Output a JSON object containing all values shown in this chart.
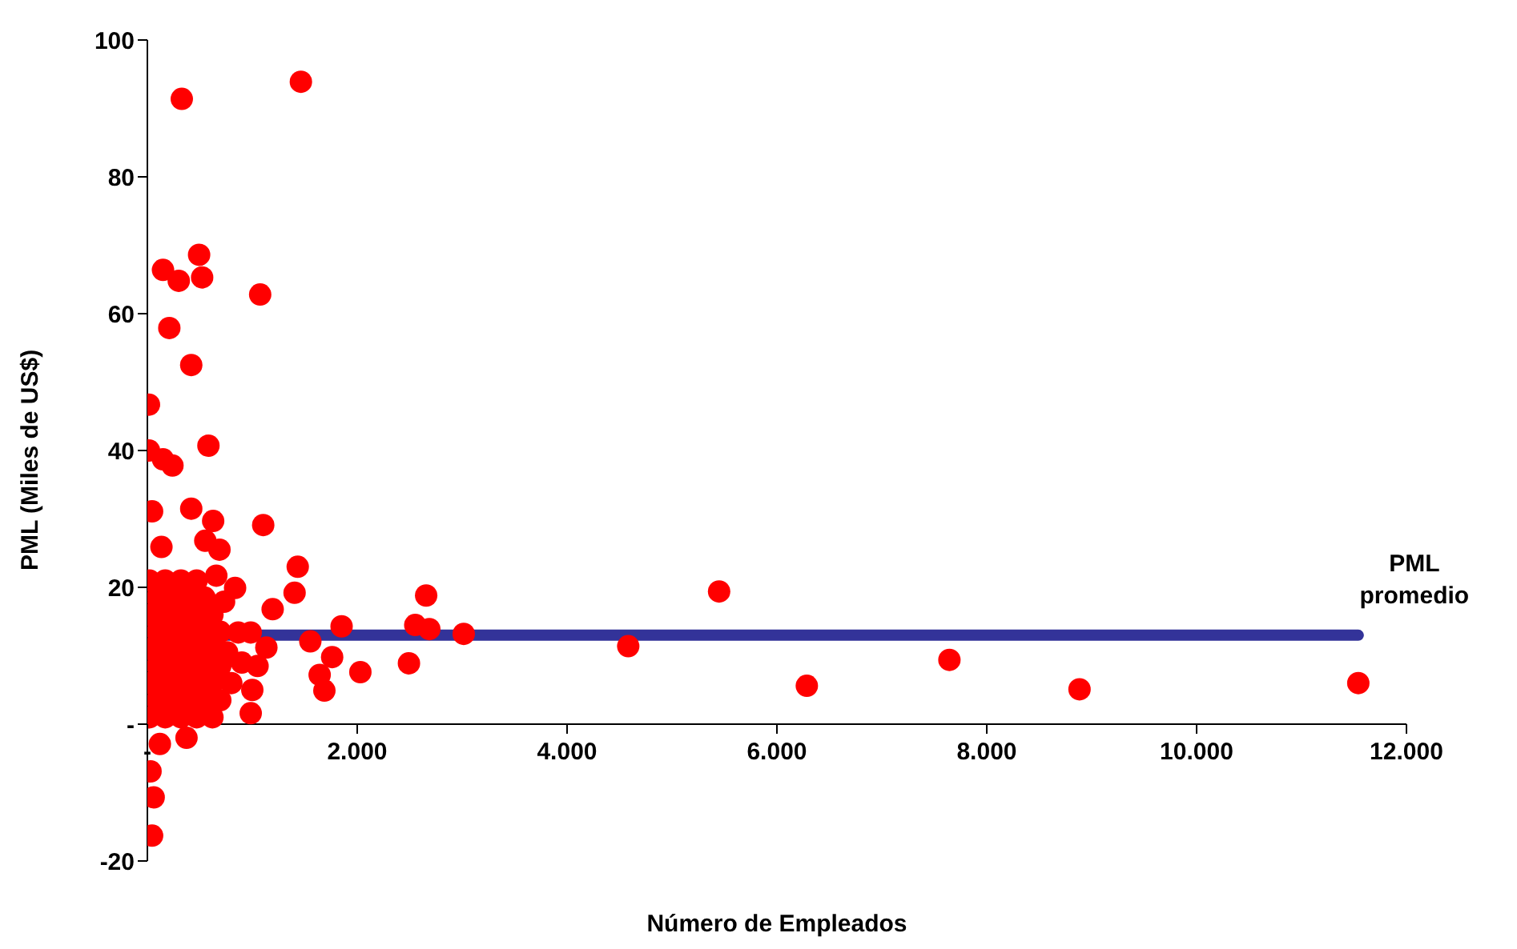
{
  "chart_data": {
    "type": "scatter",
    "xlabel": "Número de Empleados",
    "ylabel": "PML (Miles de US$)",
    "xlim": [
      0,
      12000
    ],
    "ylim": [
      -20,
      100
    ],
    "xticks": [
      {
        "value": 0,
        "label": "-"
      },
      {
        "value": 2000,
        "label": "2.000"
      },
      {
        "value": 4000,
        "label": "4.000"
      },
      {
        "value": 6000,
        "label": "6.000"
      },
      {
        "value": 8000,
        "label": "8.000"
      },
      {
        "value": 10000,
        "label": "10.000"
      },
      {
        "value": 12000,
        "label": "12.000"
      }
    ],
    "yticks": [
      -20,
      {
        "value": 0,
        "label": "-"
      },
      20,
      40,
      60,
      80,
      100
    ],
    "grid": false,
    "legend": false,
    "annotations": [
      {
        "text": "PML promedio",
        "x": 11541,
        "y": 13
      }
    ],
    "series": [
      {
        "color": "#ff0000",
        "marker": "circle",
        "x": [
          1463,
          328,
          149,
          299,
          493,
          522,
          1075,
          209,
          418,
          15,
          15,
          582,
          149,
          239,
          45,
          418,
          627,
          1104,
          552,
          687,
          657,
          134,
          1433,
          1403,
          1194,
          836,
          1851,
          1553,
          1642,
          1687,
          1761,
          2030,
          2493,
          2553,
          2657,
          2687,
          3015,
          4583,
          5449,
          6285,
          7644,
          8884,
          11541,
          30,
          60,
          45,
          119,
          373,
          985,
          1134,
          731,
          985,
          866,
          20,
          170,
          320,
          470,
          620,
          95,
          245,
          395,
          545,
          695,
          20,
          170,
          320,
          470,
          620,
          95,
          245,
          395,
          545,
          695,
          20,
          170,
          320,
          470,
          620,
          95,
          245,
          395,
          545,
          695,
          20,
          170,
          320,
          470,
          620,
          95,
          245,
          395,
          545,
          20,
          170,
          320,
          470,
          800,
          900,
          1000,
          1050,
          760
        ],
        "values": [
          93.9,
          91.4,
          66.4,
          64.8,
          68.6,
          65.3,
          62.8,
          57.9,
          52.5,
          46.7,
          40.0,
          40.7,
          38.7,
          37.8,
          31.1,
          31.5,
          29.7,
          29.1,
          26.8,
          25.5,
          21.7,
          25.9,
          23.0,
          19.2,
          16.8,
          19.9,
          14.3,
          12.1,
          7.2,
          4.9,
          9.8,
          7.6,
          8.9,
          14.5,
          18.8,
          13.9,
          13.2,
          11.4,
          19.4,
          5.6,
          9.4,
          5.1,
          6.0,
          -6.9,
          -10.7,
          -16.3,
          -2.9,
          -2.0,
          1.6,
          11.2,
          17.9,
          13.4,
          13.4,
          1,
          1,
          1,
          1,
          1,
          3.5,
          3.5,
          3.5,
          3.5,
          3.5,
          6,
          6,
          6,
          6,
          6,
          8.5,
          8.5,
          8.5,
          8.5,
          8.5,
          11,
          11,
          11,
          11,
          11,
          13.5,
          13.5,
          13.5,
          13.5,
          13.5,
          16,
          16,
          16,
          16,
          16,
          18.5,
          18.5,
          18.5,
          18.5,
          21,
          21,
          21,
          21,
          6,
          9,
          5,
          8.5,
          10.5
        ]
      },
      {
        "type": "line",
        "color": "#333399",
        "marker": "none",
        "x": [
          0,
          11541
        ],
        "values": [
          13,
          13
        ]
      }
    ]
  }
}
